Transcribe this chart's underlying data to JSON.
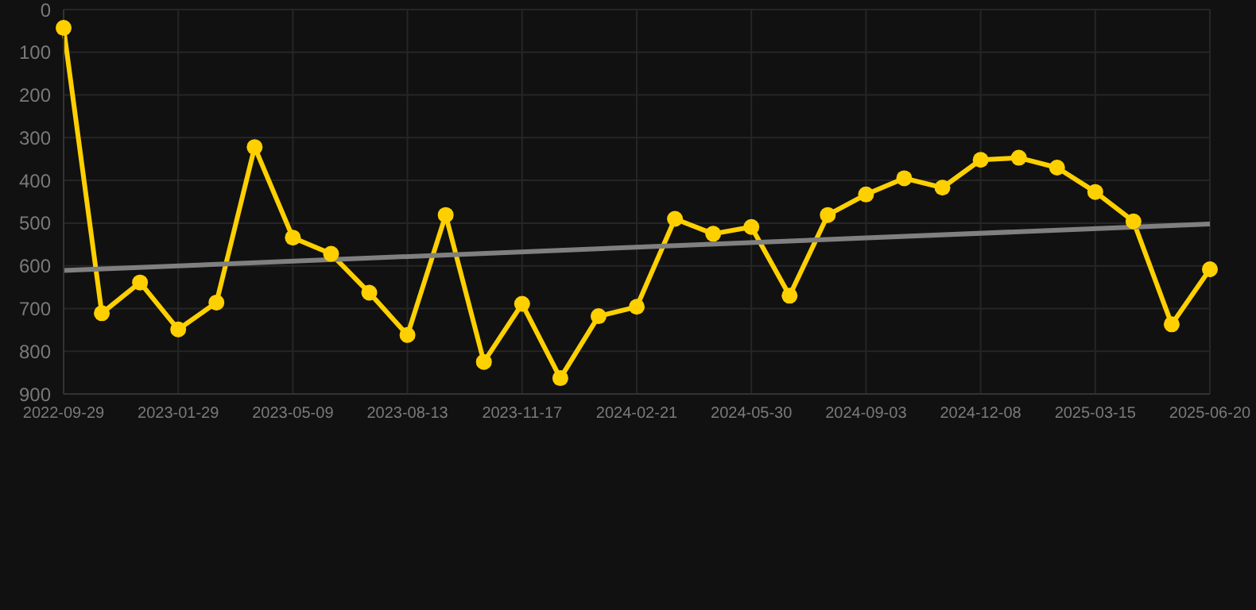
{
  "chart_data": {
    "type": "line",
    "categories": [
      "2022-09-29",
      null,
      null,
      "2023-01-29",
      null,
      null,
      "2023-05-09",
      null,
      null,
      "2023-08-13",
      null,
      null,
      "2023-11-17",
      null,
      null,
      "2024-02-21",
      null,
      null,
      "2024-05-30",
      null,
      null,
      "2024-09-03",
      null,
      null,
      "2024-12-08",
      null,
      null,
      "2025-03-15",
      null,
      null,
      "2025-06-20"
    ],
    "series": [
      {
        "color": "#ffd000",
        "marker": "circle",
        "values": [
          43,
          711,
          639,
          749,
          686,
          322,
          534,
          572,
          663,
          762,
          481,
          825,
          689,
          863,
          718,
          696,
          490,
          525,
          509,
          670,
          481,
          433,
          395,
          417,
          352,
          347,
          370,
          427,
          496,
          737,
          608
        ]
      },
      {
        "type": "line",
        "color": "#808080",
        "marker": "none",
        "values": [
          611,
          null,
          null,
          null,
          null,
          null,
          null,
          null,
          null,
          null,
          null,
          null,
          null,
          null,
          null,
          null,
          null,
          null,
          null,
          null,
          null,
          null,
          null,
          null,
          null,
          null,
          null,
          null,
          null,
          null,
          502
        ]
      }
    ],
    "ylim": [
      900,
      0
    ],
    "yticks": [
      0,
      100,
      200,
      300,
      400,
      500,
      600,
      700,
      800,
      900
    ],
    "grid": true,
    "legend": false
  }
}
